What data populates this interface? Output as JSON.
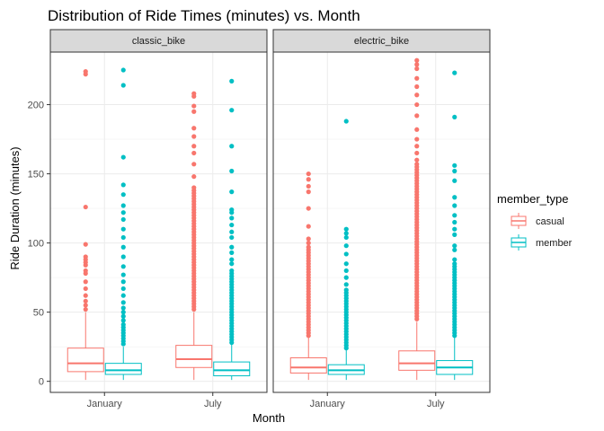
{
  "chart_data": {
    "type": "boxplot",
    "title": "Distribution of Ride Times (minutes) vs. Month",
    "xlabel": "Month",
    "ylabel": "Ride Duration (minutes)",
    "ylim": [
      -8,
      238
    ],
    "yticks": [
      0,
      50,
      100,
      150,
      200
    ],
    "categories": [
      "January",
      "July"
    ],
    "grid": true,
    "legend": {
      "title": "member_type",
      "position": "right",
      "entries": [
        {
          "name": "casual",
          "color": "#F8766D"
        },
        {
          "name": "member",
          "color": "#00BFC4"
        }
      ]
    },
    "panels": [
      {
        "label": "classic_bike",
        "groups": [
          {
            "month": "January",
            "series": "casual",
            "min": 1,
            "q1": 7,
            "median": 13,
            "q3": 24,
            "max": 50,
            "outliers": [
              52,
              55,
              58,
              62,
              67,
              72,
              78,
              80,
              84,
              86,
              88,
              90,
              99,
              126,
              222,
              224
            ]
          },
          {
            "month": "January",
            "series": "member",
            "min": 1,
            "q1": 5,
            "median": 8,
            "q3": 13,
            "max": 25,
            "outliers": [
              27,
              29,
              31,
              33,
              35,
              37,
              39,
              41,
              44,
              47,
              50,
              53,
              57,
              62,
              67,
              72,
              77,
              83,
              90,
              97,
              104,
              110,
              117,
              122,
              127,
              135,
              142,
              162,
              214,
              225
            ]
          },
          {
            "month": "July",
            "series": "casual",
            "min": 1,
            "q1": 10,
            "median": 16,
            "q3": 26,
            "max": 50,
            "outliers": [
              52,
              54,
              56,
              58,
              60,
              62,
              64,
              66,
              68,
              70,
              72,
              74,
              76,
              78,
              80,
              82,
              84,
              86,
              88,
              90,
              92,
              94,
              96,
              98,
              100,
              102,
              104,
              106,
              108,
              110,
              112,
              114,
              116,
              118,
              120,
              122,
              124,
              126,
              128,
              130,
              132,
              134,
              136,
              138,
              140,
              148,
              157,
              165,
              170,
              177,
              183,
              195,
              199,
              206,
              208
            ]
          },
          {
            "month": "July",
            "series": "member",
            "min": 1,
            "q1": 4,
            "median": 8,
            "q3": 14,
            "max": 27,
            "outliers": [
              28,
              30,
              32,
              34,
              36,
              38,
              40,
              42,
              44,
              46,
              48,
              50,
              52,
              54,
              56,
              58,
              60,
              62,
              64,
              66,
              68,
              70,
              72,
              74,
              76,
              78,
              80,
              85,
              88,
              93,
              97,
              104,
              108,
              113,
              118,
              122,
              124,
              137,
              152,
              170,
              196,
              217
            ]
          }
        ]
      },
      {
        "label": "electric_bike",
        "groups": [
          {
            "month": "January",
            "series": "casual",
            "min": 1,
            "q1": 6,
            "median": 10,
            "q3": 17,
            "max": 32,
            "outliers": [
              33,
              35,
              37,
              39,
              41,
              43,
              45,
              47,
              49,
              51,
              53,
              55,
              57,
              59,
              61,
              63,
              65,
              67,
              69,
              71,
              73,
              75,
              77,
              79,
              81,
              83,
              85,
              87,
              89,
              91,
              93,
              95,
              97,
              100,
              103,
              112,
              125,
              137,
              141,
              146,
              150
            ]
          },
          {
            "month": "January",
            "series": "member",
            "min": 1,
            "q1": 5,
            "median": 8,
            "q3": 12,
            "max": 23,
            "outliers": [
              24,
              26,
              28,
              30,
              32,
              34,
              36,
              38,
              40,
              42,
              44,
              46,
              48,
              50,
              52,
              54,
              56,
              58,
              60,
              62,
              64,
              66,
              70,
              75,
              80,
              85,
              92,
              98,
              104,
              107,
              110,
              188
            ]
          },
          {
            "month": "July",
            "series": "casual",
            "min": 1,
            "q1": 8,
            "median": 13,
            "q3": 22,
            "max": 43,
            "outliers": [
              45,
              47,
              49,
              51,
              53,
              55,
              57,
              59,
              61,
              63,
              65,
              67,
              69,
              71,
              73,
              75,
              77,
              79,
              81,
              83,
              85,
              87,
              89,
              91,
              93,
              95,
              97,
              99,
              101,
              103,
              105,
              107,
              109,
              111,
              113,
              115,
              117,
              119,
              121,
              123,
              125,
              127,
              129,
              131,
              133,
              135,
              137,
              139,
              141,
              143,
              145,
              147,
              149,
              151,
              153,
              155,
              157,
              160,
              165,
              170,
              175,
              182,
              192,
              200,
              207,
              213,
              219,
              226,
              229,
              232
            ]
          },
          {
            "month": "July",
            "series": "member",
            "min": 1,
            "q1": 5,
            "median": 10,
            "q3": 15,
            "max": 32,
            "outliers": [
              33,
              35,
              37,
              39,
              41,
              43,
              45,
              47,
              49,
              51,
              53,
              55,
              57,
              59,
              61,
              63,
              65,
              67,
              69,
              71,
              73,
              75,
              77,
              79,
              81,
              83,
              85,
              88,
              95,
              98,
              106,
              110,
              115,
              120,
              127,
              133,
              145,
              152,
              156,
              191,
              223
            ]
          }
        ]
      }
    ]
  }
}
